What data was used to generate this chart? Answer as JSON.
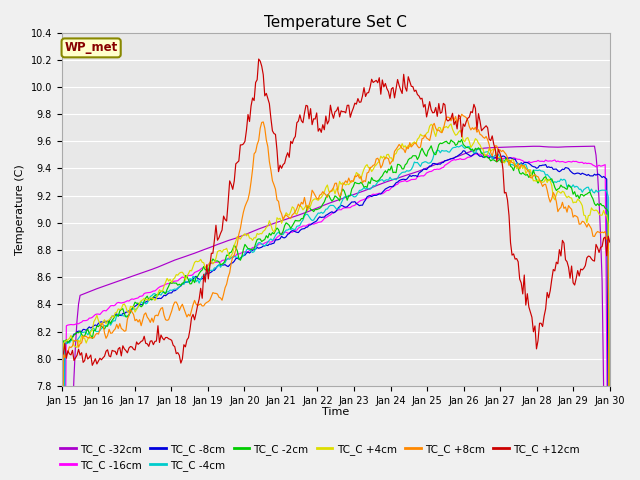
{
  "title": "Temperature Set C",
  "xlabel": "Time",
  "ylabel": "Temperature (C)",
  "ylim": [
    7.8,
    10.4
  ],
  "xlim": [
    0,
    15
  ],
  "x_tick_labels": [
    "Jan 15",
    "Jan 16",
    "Jan 17",
    "Jan 18",
    "Jan 19",
    "Jan 20",
    "Jan 21",
    "Jan 22",
    "Jan 23",
    "Jan 24",
    "Jan 25",
    "Jan 26",
    "Jan 27",
    "Jan 28",
    "Jan 29",
    "Jan 30"
  ],
  "background_color": "#f0f0f0",
  "plot_bg_color": "#e8e8e8",
  "series": [
    {
      "label": "TC_C -32cm",
      "color": "#aa00cc"
    },
    {
      "label": "TC_C -16cm",
      "color": "#ff00ff"
    },
    {
      "label": "TC_C -8cm",
      "color": "#0000dd"
    },
    {
      "label": "TC_C -4cm",
      "color": "#00cccc"
    },
    {
      "label": "TC_C -2cm",
      "color": "#00cc00"
    },
    {
      "label": "TC_C +4cm",
      "color": "#dddd00"
    },
    {
      "label": "TC_C +8cm",
      "color": "#ff8800"
    },
    {
      "label": "TC_C +12cm",
      "color": "#cc0000"
    }
  ],
  "wp_met_box_color": "#ffffcc",
  "wp_met_text_color": "#880000",
  "wp_met_border_color": "#888800",
  "grid_color": "#ffffff",
  "title_fontsize": 11,
  "tick_fontsize": 7,
  "ylabel_fontsize": 8,
  "legend_fontsize": 7.5
}
